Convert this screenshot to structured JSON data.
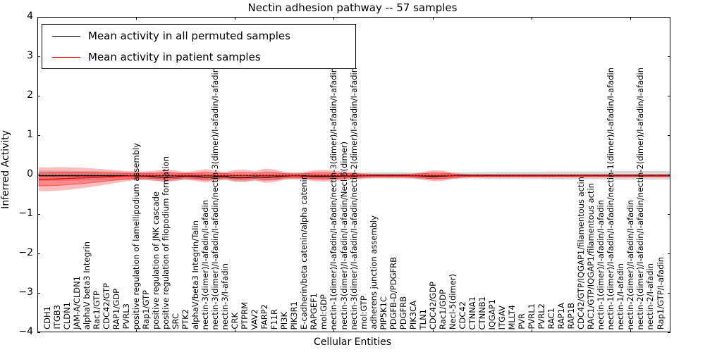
{
  "chart_data": {
    "type": "line",
    "title": "Nectin adhesion pathway -- 57 samples",
    "xlabel": "Cellular Entities",
    "ylabel": "Inferred Activity",
    "ylim": [
      -4,
      4
    ],
    "grid": false,
    "ytick_labels": [
      "4",
      "3",
      "2",
      "1",
      "0",
      "−1",
      "−2",
      "−3",
      "−4"
    ],
    "xtick_category_positions": [
      10,
      20,
      30,
      40,
      50,
      60
    ],
    "legend": {
      "position": "upper left",
      "entries": [
        {
          "label": "Mean activity in all permuted samples",
          "color": "#000000"
        },
        {
          "label": "Mean activity in patient samples",
          "color": "#ff0000"
        }
      ]
    },
    "categories": [
      "CDH1",
      "ITGB3",
      "CLDN1",
      "JAM-A/CLDN1",
      "alphaV beta3 Integrin",
      "Rac1/GTP",
      "CDC42/GTP",
      "RAP1/GDP",
      "PVRL3",
      "positive regulation of lamellipodium assembly",
      "Rap1/GTP",
      "positive regulation of JNK cascade",
      "positive regulation of filopodium formation",
      "SRC",
      "PTK2",
      "alphaV/beta3 Integrin/Talin",
      "nectin-3(dimer)/I-afadin/I-afadin",
      "nectin-3(dimer)/I-afadin/I-afadin/nectin-3(dimer)/I-afadin/I-afadin",
      "nectin-3/I-afadin",
      "CRK",
      "PTPRM",
      "VAV2",
      "FARP2",
      "F11R",
      "PI3K",
      "PIK3R1",
      "E-cadherin/beta catenin/alpha catenin",
      "RAPGEF1",
      "mol:GDP",
      "nectin-1(dimer)/I-afadin/I-afadin/nectin-3(dimer)/I-afadin/I-afadin",
      "nectin-3(dimer)/I-afadin/I-afadin/Necl-5(dimer)",
      "nectin-3(dimer)/I-afadin/I-afadin/nectin-2(dimer)/I-afadin/I-afadin",
      "mol:GTP",
      "adherens junction assembly",
      "PIP5K1C",
      "PDGFB-D/PDGFRB",
      "PDGFRB",
      "PIK3CA",
      "TLN1",
      "CDC42/GDP",
      "Rac1/GDP",
      "Necl-5(dimer)",
      "CDC42",
      "CTNNA1",
      "CTNNB1",
      "IQGAP1",
      "ITGAV",
      "MLLT4",
      "PVR",
      "PVRL1",
      "PVRL2",
      "RAC1",
      "RAP1A",
      "RAP1B",
      "CDC42/GTP/IQGAP1/filamentous actin",
      "RAC1/GTP/IQGAP1/filamentous actin",
      "nectin-1(dimer)/I-afadin/I-afadin",
      "nectin-1(dimer)/I-afadin/I-afadin/nectin-1(dimer)/I-afadin/I-afadin",
      "nectin-1/I-afadin",
      "nectin-2(dimer)/I-afadin/I-afadin",
      "nectin-2(dimer)/I-afadin/I-afadin/nectin-2(dimer)/I-afadin/I-afadin",
      "nectin-2/I-afadin",
      "Rap1/GTP/I-afadin"
    ],
    "series": [
      {
        "name": "Mean activity in all permuted samples",
        "color": "#000000",
        "band_color": "#999999",
        "values": [
          -0.03,
          -0.03,
          -0.03,
          -0.03,
          -0.03,
          -0.03,
          -0.03,
          -0.03,
          -0.03,
          -0.04,
          -0.04,
          -0.06,
          -0.07,
          -0.06,
          -0.04,
          -0.05,
          -0.07,
          -0.06,
          -0.05,
          -0.08,
          -0.08,
          -0.06,
          -0.07,
          -0.06,
          -0.04,
          -0.03,
          -0.04,
          -0.05,
          -0.05,
          -0.05,
          -0.04,
          -0.04,
          -0.03,
          -0.02,
          -0.02,
          -0.02,
          -0.02,
          -0.03,
          -0.04,
          -0.05,
          -0.04,
          -0.03,
          -0.02,
          -0.02,
          -0.02,
          -0.02,
          -0.02,
          -0.02,
          -0.02,
          -0.02,
          -0.02,
          -0.02,
          -0.02,
          -0.02,
          -0.02,
          -0.02,
          -0.02,
          -0.02,
          -0.02,
          -0.02,
          -0.02,
          -0.02,
          -0.02
        ],
        "band_half_widths": [
          0.13,
          0.13,
          0.13,
          0.12,
          0.12,
          0.12,
          0.11,
          0.11,
          0.1,
          0.1,
          0.1,
          0.1,
          0.1,
          0.09,
          0.09,
          0.09,
          0.09,
          0.09,
          0.09,
          0.09,
          0.09,
          0.09,
          0.09,
          0.09,
          0.08,
          0.08,
          0.08,
          0.08,
          0.08,
          0.08,
          0.08,
          0.08,
          0.08,
          0.08,
          0.08,
          0.08,
          0.08,
          0.08,
          0.08,
          0.08,
          0.08,
          0.08,
          0.08,
          0.08,
          0.08,
          0.09,
          0.09,
          0.09,
          0.09,
          0.09,
          0.09,
          0.1,
          0.1,
          0.1,
          0.1,
          0.1,
          0.1,
          0.11,
          0.11,
          0.11,
          0.11,
          0.11,
          0.11
        ]
      },
      {
        "name": "Mean activity in patient samples",
        "color": "#ff0000",
        "band_color": "#ff0000",
        "values": [
          -0.12,
          -0.11,
          -0.1,
          -0.09,
          -0.08,
          -0.07,
          -0.06,
          -0.05,
          -0.04,
          -0.03,
          -0.03,
          -0.03,
          -0.03,
          -0.03,
          -0.03,
          -0.03,
          -0.03,
          -0.03,
          -0.03,
          -0.03,
          -0.03,
          -0.03,
          -0.03,
          -0.03,
          -0.03,
          -0.03,
          -0.03,
          -0.03,
          -0.03,
          -0.03,
          -0.03,
          -0.03,
          -0.03,
          -0.03,
          -0.03,
          -0.03,
          -0.03,
          -0.03,
          -0.03,
          -0.03,
          -0.03,
          -0.03,
          -0.03,
          -0.03,
          -0.03,
          -0.03,
          -0.03,
          -0.03,
          -0.03,
          -0.03,
          -0.03,
          -0.03,
          -0.03,
          -0.03,
          -0.03,
          -0.03,
          -0.03,
          -0.03,
          -0.03,
          -0.03,
          -0.03,
          -0.03,
          -0.03
        ],
        "band_half_widths": [
          0.3,
          0.3,
          0.29,
          0.27,
          0.25,
          0.22,
          0.19,
          0.16,
          0.13,
          0.11,
          0.11,
          0.13,
          0.17,
          0.13,
          0.1,
          0.13,
          0.17,
          0.13,
          0.1,
          0.15,
          0.16,
          0.12,
          0.18,
          0.16,
          0.1,
          0.08,
          0.1,
          0.14,
          0.15,
          0.13,
          0.11,
          0.09,
          0.06,
          0.05,
          0.05,
          0.05,
          0.05,
          0.06,
          0.1,
          0.14,
          0.13,
          0.08,
          0.05,
          0.04,
          0.04,
          0.04,
          0.04,
          0.04,
          0.04,
          0.04,
          0.04,
          0.04,
          0.04,
          0.04,
          0.04,
          0.04,
          0.04,
          0.04,
          0.04,
          0.04,
          0.04,
          0.04,
          0.04
        ]
      }
    ],
    "reference_line": {
      "value": -0.02,
      "style": "dotted",
      "color": "#000000"
    }
  }
}
